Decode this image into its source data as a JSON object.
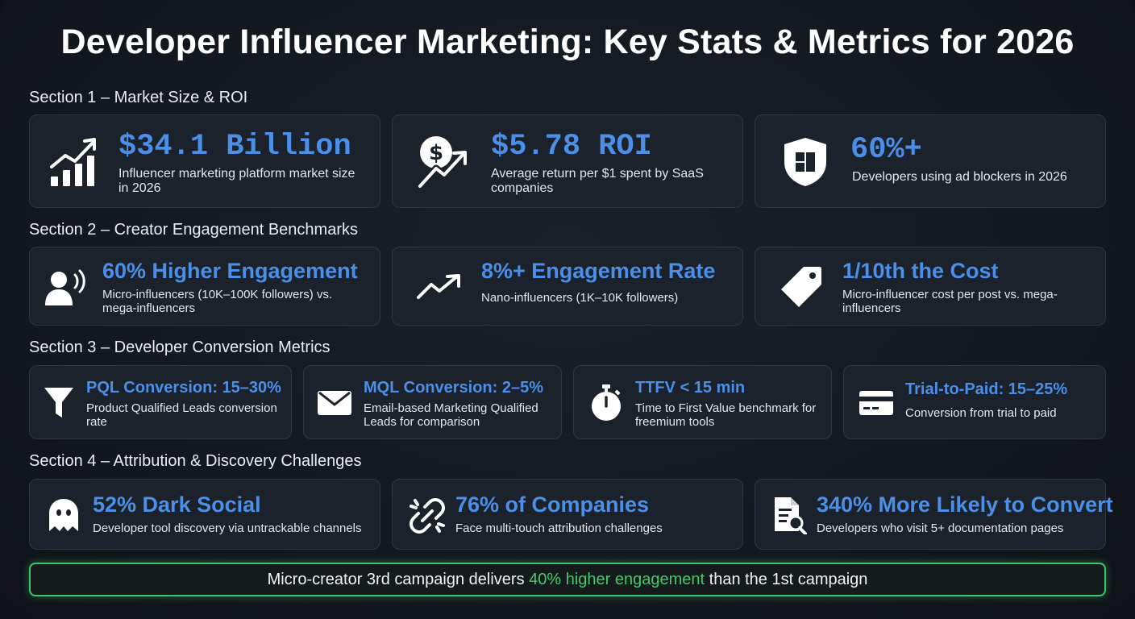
{
  "title": "Developer Influencer Marketing: Key Stats & Metrics for 2026",
  "sections": [
    {
      "label": "Section 1 – Market Size & ROI",
      "cards": [
        {
          "icon": "growth-chart-icon",
          "value": "$34.1 Billion",
          "desc": "Influencer marketing platform market size in 2026"
        },
        {
          "icon": "dollar-roi-icon",
          "value": "$5.78 ROI",
          "desc": "Average return per $1 spent by SaaS companies"
        },
        {
          "icon": "shield-icon",
          "value": "60%+",
          "desc": "Developers using ad blockers in 2026"
        }
      ]
    },
    {
      "label": "Section 2 – Creator Engagement Benchmarks",
      "cards": [
        {
          "icon": "broadcaster-icon",
          "value": "60% Higher Engagement",
          "desc": "Micro-influencers (10K–100K followers) vs. mega-influencers"
        },
        {
          "icon": "trend-up-icon",
          "value": "8%+ Engagement Rate",
          "desc": "Nano-influencers (1K–10K followers)"
        },
        {
          "icon": "price-tag-icon",
          "value": "1/10th the Cost",
          "desc": "Micro-influencer cost per post vs. mega-influencers"
        }
      ]
    },
    {
      "label": "Section 3 – Developer Conversion Metrics",
      "cards": [
        {
          "icon": "funnel-icon",
          "value": "PQL Conversion: 15–30%",
          "desc": "Product Qualified Leads conversion rate"
        },
        {
          "icon": "envelope-icon",
          "value": "MQL Conversion: 2–5%",
          "desc": "Email-based Marketing Qualified Leads for comparison"
        },
        {
          "icon": "stopwatch-icon",
          "value": "TTFV < 15 min",
          "desc": "Time to First Value benchmark for freemium tools"
        },
        {
          "icon": "credit-card-icon",
          "value": "Trial-to-Paid: 15–25%",
          "desc": "Conversion from trial to paid"
        }
      ]
    },
    {
      "label": "Section 4 – Attribution & Discovery Challenges",
      "cards": [
        {
          "icon": "ghost-icon",
          "value": "52% Dark Social",
          "desc": "Developer tool discovery via untrackable channels"
        },
        {
          "icon": "broken-link-icon",
          "value": "76% of Companies",
          "desc": "Face multi-touch attribution challenges"
        },
        {
          "icon": "document-search-icon",
          "value": "340% More Likely to Convert",
          "desc": "Developers who visit 5+ documentation pages"
        }
      ]
    }
  ],
  "banner": {
    "before": "Micro-creator 3rd campaign delivers ",
    "highlight": "40% higher engagement",
    "after": " than the 1st campaign"
  },
  "colors": {
    "accent": "#4b8fe8",
    "highlight": "#45c86e",
    "card_bg": "#1c222b",
    "page_bg": "#141920"
  }
}
